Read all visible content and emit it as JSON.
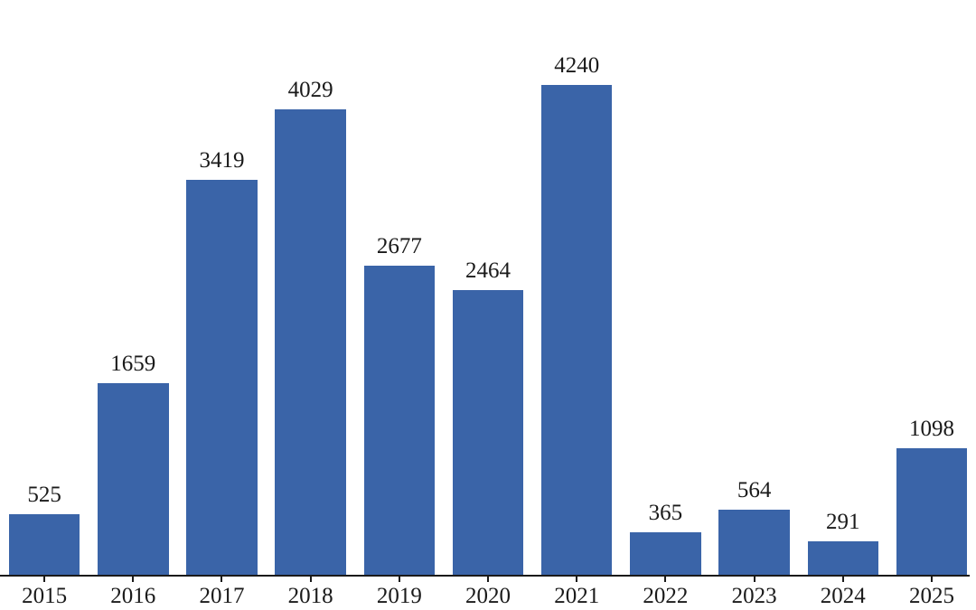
{
  "chart_data": {
    "type": "bar",
    "categories": [
      "2015",
      "2016",
      "2017",
      "2018",
      "2019",
      "2020",
      "2021",
      "2022",
      "2023",
      "2024",
      "2025"
    ],
    "values": [
      525,
      1659,
      3419,
      4029,
      2677,
      2464,
      4240,
      365,
      564,
      291,
      1098
    ],
    "value_labels": [
      "525",
      "1659",
      "3419",
      "4029",
      "2677",
      "2464",
      "4240",
      "365",
      "564",
      "291",
      "1098"
    ],
    "title": "",
    "xlabel": "",
    "ylabel": "",
    "ylim": [
      0,
      4450
    ],
    "grid": false,
    "legend": "none",
    "value_labels_shown": true,
    "bar_color": "#3A64A8",
    "axis_color": "#1a1a1a",
    "text_color": "#1a1a1a",
    "background_color": "#ffffff"
  }
}
